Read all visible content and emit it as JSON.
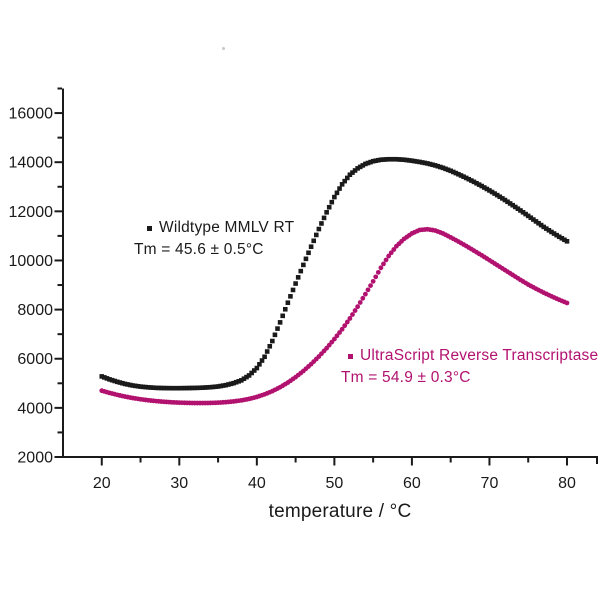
{
  "figure": {
    "background": "#ffffff",
    "axis_color": "#1a1a1a"
  },
  "chart_data": {
    "type": "scatter",
    "title": "",
    "xlabel": "temperature / °C",
    "ylabel": "",
    "xlim": [
      15,
      84
    ],
    "ylim": [
      2000,
      17000
    ],
    "grid": false,
    "legend_position": "inline annotations next to each curve",
    "x_ticks_major": [
      20,
      30,
      40,
      50,
      60,
      70,
      80
    ],
    "x_ticks_minor": [
      25,
      35,
      45,
      55,
      65,
      75
    ],
    "y_ticks_major": [
      2000,
      4000,
      6000,
      8000,
      10000,
      12000,
      14000,
      16000
    ],
    "y_ticks_minor": [
      3000,
      5000,
      7000,
      9000,
      11000,
      13000,
      15000,
      17000
    ],
    "series": [
      {
        "name": "Wildtype MMLV RT",
        "tm_label": "Tm = 45.6 ± 0.5°C",
        "tm_value_c": 45.6,
        "tm_error_c": 0.5,
        "color": "#1a1a1a",
        "marker": "square",
        "x": [
          20,
          21,
          22,
          23,
          24,
          25,
          26,
          27,
          28,
          29,
          30,
          31,
          32,
          33,
          34,
          35,
          36,
          37,
          38,
          39,
          40,
          41,
          42,
          43,
          44,
          45,
          46,
          47,
          48,
          49,
          50,
          51,
          52,
          53,
          54,
          55,
          56,
          57,
          58,
          59,
          60,
          61,
          62,
          63,
          64,
          65,
          66,
          67,
          68,
          69,
          70,
          71,
          72,
          73,
          74,
          75,
          76,
          77,
          78,
          79,
          80
        ],
        "y": [
          5280,
          5160,
          5060,
          4975,
          4910,
          4865,
          4835,
          4815,
          4805,
          4800,
          4800,
          4805,
          4812,
          4822,
          4840,
          4870,
          4925,
          5005,
          5120,
          5320,
          5620,
          6080,
          6720,
          7480,
          8280,
          9060,
          9820,
          10560,
          11280,
          11960,
          12580,
          13100,
          13490,
          13750,
          13930,
          14040,
          14100,
          14120,
          14120,
          14100,
          14060,
          14010,
          13950,
          13870,
          13770,
          13650,
          13510,
          13360,
          13200,
          13030,
          12850,
          12660,
          12460,
          12250,
          12035,
          11815,
          11590,
          11365,
          11160,
          10965,
          10780
        ]
      },
      {
        "name": "UltraScript Reverse Transcriptase",
        "tm_label": "Tm = 54.9 ± 0.3°C",
        "tm_value_c": 54.9,
        "tm_error_c": 0.3,
        "color": "#b2126f",
        "marker": "circle",
        "x": [
          20,
          21,
          22,
          23,
          24,
          25,
          26,
          27,
          28,
          29,
          30,
          31,
          32,
          33,
          34,
          35,
          36,
          37,
          38,
          39,
          40,
          41,
          42,
          43,
          44,
          45,
          46,
          47,
          48,
          49,
          50,
          51,
          52,
          53,
          54,
          55,
          56,
          57,
          58,
          59,
          60,
          61,
          62,
          63,
          64,
          65,
          66,
          67,
          68,
          69,
          70,
          71,
          72,
          73,
          74,
          75,
          76,
          77,
          78,
          79,
          80
        ],
        "y": [
          4700,
          4610,
          4530,
          4460,
          4400,
          4350,
          4310,
          4275,
          4248,
          4228,
          4212,
          4202,
          4196,
          4195,
          4200,
          4212,
          4232,
          4262,
          4305,
          4365,
          4445,
          4550,
          4680,
          4840,
          5030,
          5250,
          5500,
          5780,
          6090,
          6430,
          6800,
          7200,
          7640,
          8120,
          8630,
          9150,
          9700,
          10180,
          10580,
          10880,
          11100,
          11240,
          11270,
          11220,
          11100,
          10940,
          10770,
          10590,
          10400,
          10210,
          10010,
          9810,
          9610,
          9410,
          9210,
          9020,
          8850,
          8690,
          8540,
          8400,
          8270
        ]
      }
    ]
  }
}
